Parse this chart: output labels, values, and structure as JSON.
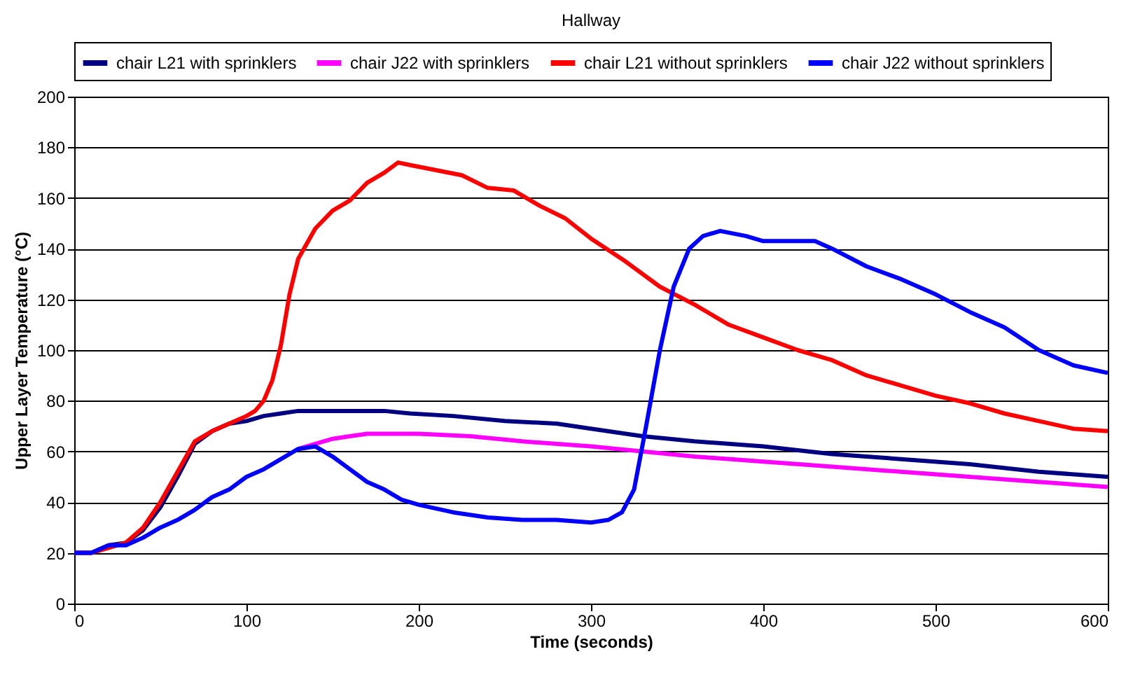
{
  "chart_data": {
    "type": "line",
    "title": "Hallway",
    "xlabel": "Time (seconds)",
    "ylabel": "Upper Layer Temperature (°C)",
    "xlim": [
      0,
      600
    ],
    "xticks": [
      0,
      100,
      200,
      300,
      400,
      500,
      600
    ],
    "ylim": [
      0,
      200
    ],
    "yticks": [
      0,
      20,
      40,
      60,
      80,
      100,
      120,
      140,
      160,
      180,
      200
    ],
    "grid": "y",
    "legend": "top",
    "marker": "none",
    "line_style": "solid",
    "series": [
      {
        "name": "chair L21 with sprinklers",
        "color": "#000080",
        "x": [
          0,
          10,
          20,
          30,
          40,
          50,
          60,
          70,
          80,
          90,
          100,
          110,
          120,
          130,
          140,
          160,
          180,
          195,
          220,
          250,
          280,
          300,
          330,
          360,
          400,
          440,
          480,
          520,
          560,
          600
        ],
        "values": [
          20,
          20,
          23,
          24,
          29,
          38,
          50,
          63,
          68,
          71,
          72,
          74,
          75,
          76,
          76,
          76,
          76,
          75,
          74,
          72,
          71,
          69,
          66,
          64,
          62,
          59,
          57,
          55,
          52,
          50
        ]
      },
      {
        "name": "chair J22 with sprinklers",
        "color": "#ff00ff",
        "x": [
          130,
          140,
          150,
          160,
          170,
          200,
          230,
          260,
          300,
          330,
          360,
          400,
          440,
          480,
          520,
          560,
          600
        ],
        "values": [
          61,
          63,
          65,
          66,
          67,
          67,
          66,
          64,
          62,
          60,
          58,
          56,
          54,
          52,
          50,
          48,
          46
        ]
      },
      {
        "name": "chair L21 without sprinklers",
        "color": "#ff0000",
        "x": [
          0,
          10,
          20,
          30,
          40,
          50,
          60,
          70,
          80,
          90,
          100,
          105,
          110,
          115,
          120,
          125,
          130,
          140,
          150,
          160,
          170,
          180,
          188,
          195,
          210,
          225,
          240,
          255,
          270,
          285,
          300,
          320,
          340,
          360,
          380,
          400,
          420,
          440,
          460,
          480,
          500,
          520,
          540,
          560,
          580,
          600
        ],
        "values": [
          20,
          20,
          22,
          24,
          30,
          40,
          52,
          64,
          68,
          71,
          74,
          76,
          80,
          88,
          102,
          122,
          136,
          148,
          155,
          159,
          166,
          170,
          174,
          173,
          171,
          169,
          164,
          163,
          157,
          152,
          144,
          135,
          125,
          118,
          110,
          105,
          100,
          96,
          90,
          86,
          82,
          79,
          75,
          72,
          69,
          68
        ]
      },
      {
        "name": "chair J22 without sprinklers",
        "color": "#0000ff",
        "x": [
          0,
          10,
          20,
          30,
          40,
          50,
          60,
          70,
          80,
          90,
          100,
          110,
          120,
          130,
          140,
          150,
          160,
          170,
          180,
          190,
          200,
          220,
          240,
          260,
          280,
          300,
          310,
          318,
          325,
          332,
          340,
          348,
          357,
          365,
          375,
          390,
          400,
          430,
          440,
          460,
          480,
          500,
          520,
          540,
          560,
          580,
          600
        ],
        "values": [
          20,
          20,
          23,
          23,
          26,
          30,
          33,
          37,
          42,
          45,
          50,
          53,
          57,
          61,
          62,
          58,
          53,
          48,
          45,
          41,
          39,
          36,
          34,
          33,
          33,
          32,
          33,
          36,
          45,
          70,
          100,
          125,
          140,
          145,
          147,
          145,
          143,
          143,
          140,
          133,
          128,
          122,
          115,
          109,
          100,
          94,
          91
        ]
      }
    ]
  }
}
